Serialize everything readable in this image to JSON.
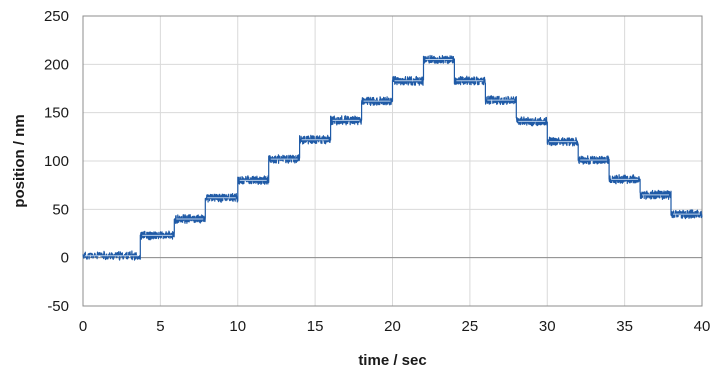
{
  "chart_data": {
    "type": "line",
    "title": "",
    "xlabel": "time / sec",
    "ylabel": "position / nm",
    "xlim": [
      0,
      40
    ],
    "ylim": [
      -50,
      250
    ],
    "x_ticks": [
      0,
      5,
      10,
      15,
      20,
      25,
      30,
      35,
      40
    ],
    "y_ticks": [
      -50,
      0,
      50,
      100,
      150,
      200,
      250
    ],
    "grid": true,
    "legend": "none",
    "colors": {
      "series": "#1f5aa6",
      "grid": "#d9d9d9",
      "axis": "#8c8c8c"
    },
    "series": [
      {
        "name": "",
        "steps": [
          {
            "start": 0.0,
            "end": 3.7,
            "y": 2
          },
          {
            "start": 3.7,
            "end": 5.9,
            "y": 23
          },
          {
            "start": 5.9,
            "end": 7.9,
            "y": 40
          },
          {
            "start": 7.9,
            "end": 10.0,
            "y": 62
          },
          {
            "start": 10.0,
            "end": 12.0,
            "y": 80
          },
          {
            "start": 12.0,
            "end": 14.0,
            "y": 102
          },
          {
            "start": 14.0,
            "end": 16.0,
            "y": 122
          },
          {
            "start": 16.0,
            "end": 18.0,
            "y": 142
          },
          {
            "start": 18.0,
            "end": 20.0,
            "y": 162
          },
          {
            "start": 20.0,
            "end": 22.0,
            "y": 183
          },
          {
            "start": 22.0,
            "end": 24.0,
            "y": 205
          },
          {
            "start": 24.0,
            "end": 26.0,
            "y": 183
          },
          {
            "start": 26.0,
            "end": 28.0,
            "y": 163
          },
          {
            "start": 28.0,
            "end": 30.0,
            "y": 141
          },
          {
            "start": 30.0,
            "end": 32.0,
            "y": 120
          },
          {
            "start": 32.0,
            "end": 34.0,
            "y": 101
          },
          {
            "start": 34.0,
            "end": 36.0,
            "y": 81
          },
          {
            "start": 36.0,
            "end": 38.0,
            "y": 65
          },
          {
            "start": 38.0,
            "end": 40.0,
            "y": 45
          }
        ],
        "noise_amplitude": 5
      }
    ]
  }
}
